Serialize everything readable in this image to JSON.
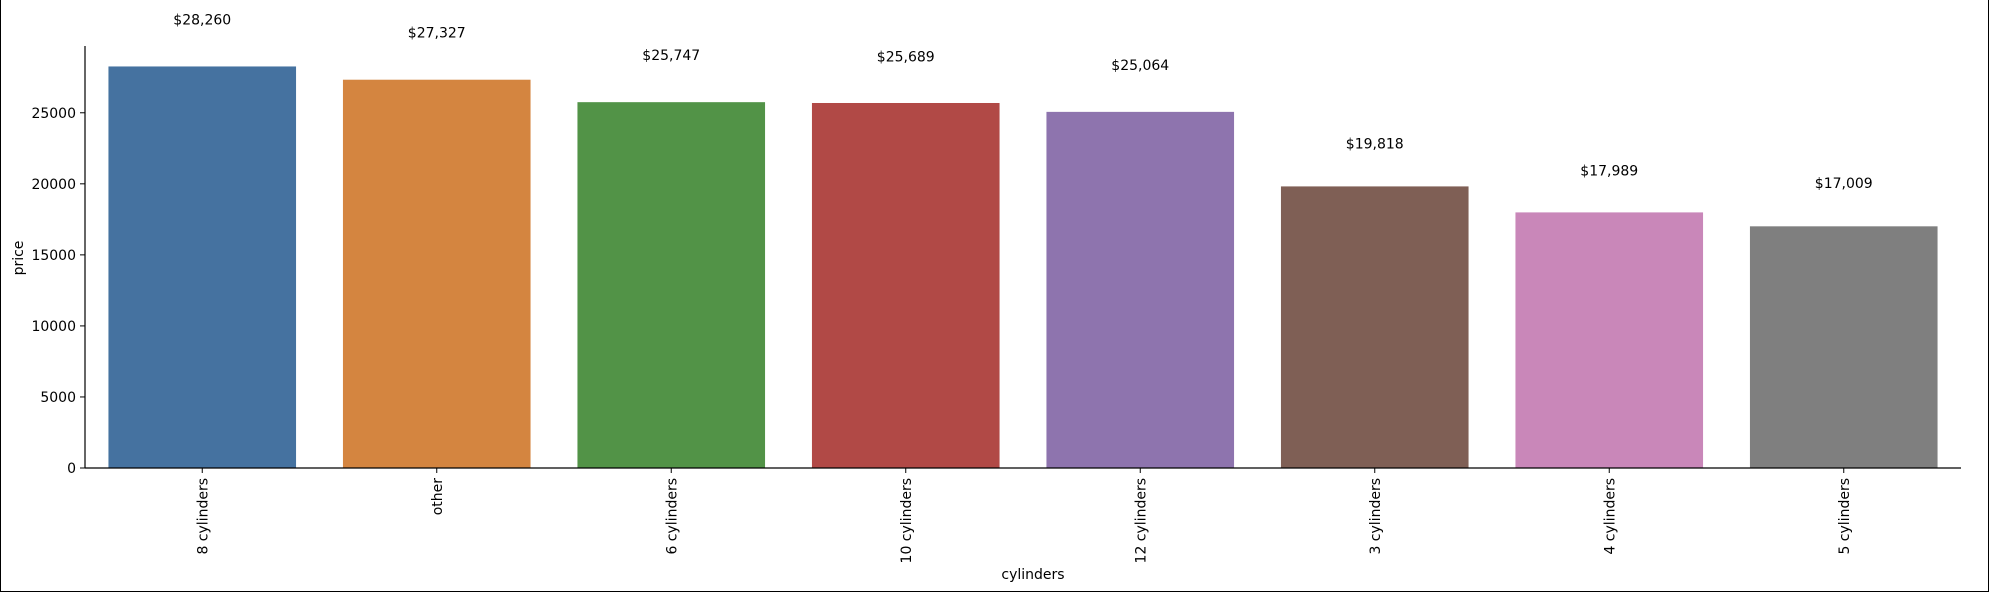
{
  "chart_data": {
    "type": "bar",
    "xlabel": "cylinders",
    "ylabel": "price",
    "ylim": [
      0,
      29700
    ],
    "yticks": [
      0,
      5000,
      10000,
      15000,
      20000,
      25000
    ],
    "grid": false,
    "legend": "none",
    "categories": [
      "8 cylinders",
      "other",
      "6 cylinders",
      "10 cylinders",
      "12 cylinders",
      "3 cylinders",
      "4 cylinders",
      "5 cylinders"
    ],
    "values": [
      28260,
      27327,
      25747,
      25689,
      25064,
      19818,
      17989,
      17009
    ],
    "data_labels": [
      "$28,260",
      "$27,327",
      "$25,747",
      "$25,689",
      "$25,064",
      "$19,818",
      "$17,989",
      "$17,009"
    ],
    "label_values": [
      31200,
      30300,
      28700,
      28600,
      28000,
      22500,
      20600,
      19700
    ],
    "colors": [
      "#4572a0",
      "#d48540",
      "#529347",
      "#b14946",
      "#8e74ae",
      "#7f5f55",
      "#c987b9",
      "#7f7f7f"
    ]
  }
}
